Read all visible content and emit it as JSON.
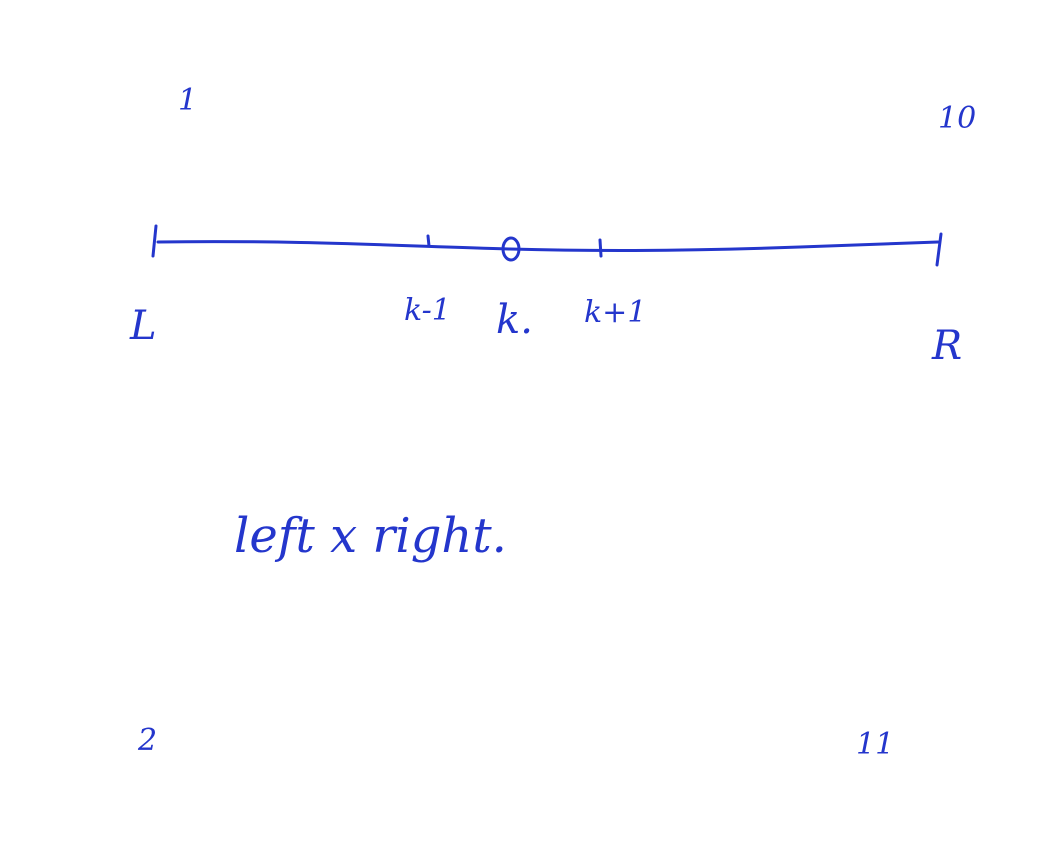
{
  "ink_color": "#2436CC",
  "corner_labels": {
    "top_left": "1",
    "top_right": "10",
    "bottom_left": "2",
    "bottom_right": "11"
  },
  "axis": {
    "left_label": "L",
    "right_label": "R",
    "ticks": [
      {
        "label": "k-1",
        "marker": "tick"
      },
      {
        "label": "k.",
        "marker": "circle"
      },
      {
        "label": "k+1",
        "marker": "tick"
      }
    ]
  },
  "note": "left x right."
}
